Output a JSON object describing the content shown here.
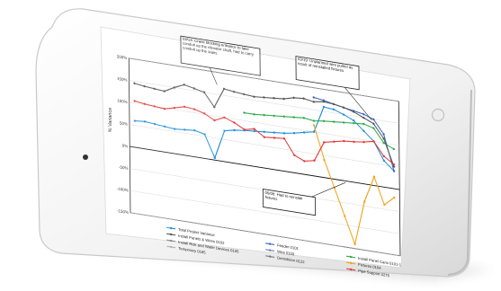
{
  "chart_data": {
    "type": "line",
    "yaxis_title": "% Variance",
    "y_ticks": [
      "200%",
      "150%",
      "100%",
      "50%",
      "0%",
      "-50%",
      "-100%",
      "-150%"
    ],
    "callouts": [
      "03/14: Crane blocking entrance to take conduit up the elevator shaft, had to carry conduit up the stairs",
      "03/19: Unplanned wire pulled as result of reinstalled fixtures",
      "05/06: Had to reinstall fixtures"
    ],
    "series": [
      {
        "name": "Total Project Variance",
        "color": "#1f8fd6",
        "values": [
          60,
          62,
          60,
          58,
          56,
          58,
          60,
          55,
          5,
          70,
          75,
          78,
          80,
          82,
          84,
          86,
          90,
          95,
          100,
          160,
          158,
          150,
          140,
          120,
          100,
          60,
          40
        ]
      },
      {
        "name": "Feeder 0101",
        "color": "#3a66c4",
        "values": [
          null,
          null,
          null,
          null,
          null,
          null,
          null,
          null,
          null,
          null,
          null,
          null,
          null,
          null,
          null,
          null,
          null,
          null,
          178,
          175,
          170,
          166,
          162,
          158,
          150,
          120,
          40
        ]
      },
      {
        "name": "Install Panel Cans 0101-1",
        "color": "#2fa84f",
        "values": [
          null,
          null,
          null,
          null,
          null,
          null,
          null,
          null,
          null,
          null,
          null,
          118,
          118,
          120,
          122,
          124,
          126,
          128,
          125,
          128,
          130,
          132,
          134,
          136,
          130,
          100,
          90
        ]
      },
      {
        "name": "Install Panels & Wires 0102",
        "color": "#555555",
        "values": [
          145,
          142,
          140,
          138,
          150,
          160,
          155,
          150,
          120,
          165,
          162,
          160,
          158,
          160,
          162,
          164,
          170,
          172,
          168,
          172,
          170,
          166,
          160,
          150,
          140,
          110,
          50
        ]
      },
      {
        "name": "Wire 0103",
        "color": "#6a7fb3",
        "values": [
          null,
          null,
          null,
          null,
          null,
          null,
          null,
          null,
          null,
          null,
          null,
          null,
          null,
          null,
          null,
          null,
          null,
          null,
          null,
          null,
          null,
          null,
          null,
          null,
          null,
          null,
          null
        ]
      },
      {
        "name": "Fixtures 0104",
        "color": "#f0a41c",
        "values": [
          null,
          null,
          null,
          null,
          null,
          null,
          null,
          null,
          null,
          null,
          null,
          null,
          null,
          null,
          null,
          null,
          null,
          null,
          115,
          40,
          -20,
          -80,
          -140,
          -40,
          20,
          -40,
          -20
        ]
      },
      {
        "name": "Install Risk and Water Devices 0105",
        "color": "#8a8a8a",
        "values": [
          null,
          null,
          null,
          null,
          null,
          null,
          null,
          null,
          null,
          null,
          null,
          null,
          null,
          null,
          null,
          null,
          null,
          null,
          null,
          null,
          null,
          null,
          null,
          null,
          null,
          null,
          null
        ]
      },
      {
        "name": "Demolition 0122",
        "color": "#777777",
        "values": [
          null,
          null,
          null,
          null,
          null,
          null,
          null,
          null,
          null,
          null,
          null,
          null,
          null,
          null,
          null,
          null,
          null,
          null,
          null,
          null,
          null,
          null,
          null,
          null,
          null,
          null,
          null
        ]
      },
      {
        "name": "Pipe Support 0275",
        "color": "#e23a3a",
        "values": [
          105,
          102,
          100,
          98,
          104,
          110,
          108,
          102,
          90,
          100,
          92,
          80,
          85,
          70,
          72,
          74,
          40,
          30,
          35,
          80,
          85,
          90,
          92,
          95,
          100,
          70,
          55
        ]
      },
      {
        "name": "Temporary 0185",
        "color": "#b0b0b0",
        "values": [
          null,
          null,
          null,
          null,
          null,
          null,
          null,
          null,
          null,
          null,
          null,
          null,
          null,
          null,
          null,
          null,
          null,
          null,
          null,
          null,
          null,
          null,
          null,
          null,
          null,
          null,
          null
        ]
      }
    ]
  }
}
